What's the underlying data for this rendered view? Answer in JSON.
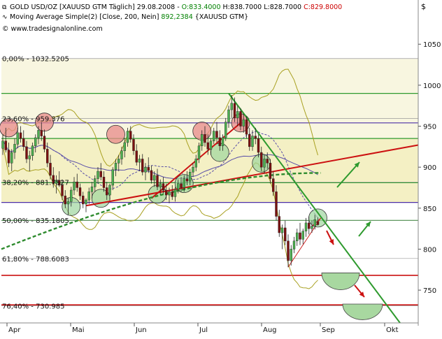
{
  "header": {
    "title_prefix": "GOLD USD/OZ [XAUUSD GTM  Täglich] 29.08.2008 - ",
    "ohlc": [
      {
        "text": "O:833.4000",
        "color": "#008000"
      },
      {
        "text": " H:838.7000",
        "color": "#000000"
      },
      {
        "text": " L:828.7000",
        "color": "#000000"
      },
      {
        "text": " C:829.8000",
        "color": "#cc0000"
      }
    ],
    "ma_label": "Moving Average Simple(2) [Close, 200, Nein] ",
    "ma_value": "892,2384",
    "ma_suffix": " {XAUUSD GTM}",
    "copyright": "© www.tradesignalonline.com",
    "currency_symbol": "$"
  },
  "chart_data": {
    "type": "candlestick",
    "instrument": "GOLD USD/OZ",
    "x_ticks": [
      "Apr",
      "Mai",
      "Jun",
      "Jul",
      "Aug",
      "Sep",
      "Okt"
    ],
    "y_ticks": [
      750,
      800,
      850,
      900,
      950,
      1000,
      1050
    ],
    "ylim": [
      710,
      1063
    ],
    "grid": false,
    "fib_levels": [
      {
        "label": "0,00% - 1032.5205",
        "value": 1032.52
      },
      {
        "label": "23,60% - 959.376",
        "value": 959.38
      },
      {
        "label": "38,20% - 881.7527",
        "value": 881.75
      },
      {
        "label": "50,00% - 835.1805",
        "value": 835.18
      },
      {
        "label": "61,80% - 788.6083",
        "value": 788.61
      },
      {
        "label": "76,40% - 730.985",
        "value": 730.99
      }
    ],
    "level_lines": [
      {
        "value": 990,
        "color": "#2e9a2e"
      },
      {
        "value": 954,
        "color": "#4b2fa6"
      },
      {
        "value": 935,
        "color": "#2e9a2e"
      },
      {
        "value": 881,
        "color": "#2e9a2e"
      },
      {
        "value": 857,
        "color": "#4b2fa6"
      },
      {
        "value": 835,
        "color": "#2e9a2e"
      },
      {
        "value": 768,
        "color": "#cc1111"
      },
      {
        "value": 732,
        "color": "#cc1111"
      }
    ],
    "zones": [
      {
        "from": 935,
        "to": 1032.5,
        "color": "#f8f6e0"
      },
      {
        "from": 857,
        "to": 935,
        "color": "#f4f0c4"
      }
    ],
    "candles": [
      {
        "o": 923,
        "h": 940,
        "l": 915,
        "c": 932
      },
      {
        "o": 932,
        "h": 948,
        "l": 918,
        "c": 921
      },
      {
        "o": 921,
        "h": 930,
        "l": 900,
        "c": 905
      },
      {
        "o": 905,
        "h": 922,
        "l": 895,
        "c": 918
      },
      {
        "o": 918,
        "h": 935,
        "l": 910,
        "c": 928
      },
      {
        "o": 928,
        "h": 948,
        "l": 923,
        "c": 942
      },
      {
        "o": 942,
        "h": 950,
        "l": 930,
        "c": 935
      },
      {
        "o": 935,
        "h": 945,
        "l": 920,
        "c": 925
      },
      {
        "o": 925,
        "h": 932,
        "l": 905,
        "c": 910
      },
      {
        "o": 910,
        "h": 920,
        "l": 895,
        "c": 914
      },
      {
        "o": 914,
        "h": 930,
        "l": 908,
        "c": 926
      },
      {
        "o": 926,
        "h": 940,
        "l": 918,
        "c": 936
      },
      {
        "o": 936,
        "h": 950,
        "l": 928,
        "c": 945
      },
      {
        "o": 945,
        "h": 955,
        "l": 932,
        "c": 938
      },
      {
        "o": 938,
        "h": 946,
        "l": 918,
        "c": 922
      },
      {
        "o": 922,
        "h": 930,
        "l": 900,
        "c": 905
      },
      {
        "o": 905,
        "h": 915,
        "l": 885,
        "c": 890
      },
      {
        "o": 890,
        "h": 900,
        "l": 875,
        "c": 880
      },
      {
        "o": 880,
        "h": 890,
        "l": 868,
        "c": 884
      },
      {
        "o": 884,
        "h": 895,
        "l": 876,
        "c": 878
      },
      {
        "o": 878,
        "h": 885,
        "l": 860,
        "c": 865
      },
      {
        "o": 865,
        "h": 872,
        "l": 850,
        "c": 855
      },
      {
        "o": 855,
        "h": 862,
        "l": 842,
        "c": 858
      },
      {
        "o": 858,
        "h": 876,
        "l": 852,
        "c": 872
      },
      {
        "o": 872,
        "h": 888,
        "l": 866,
        "c": 882
      },
      {
        "o": 882,
        "h": 892,
        "l": 870,
        "c": 875
      },
      {
        "o": 875,
        "h": 880,
        "l": 860,
        "c": 865
      },
      {
        "o": 865,
        "h": 870,
        "l": 850,
        "c": 855
      },
      {
        "o": 855,
        "h": 862,
        "l": 845,
        "c": 860
      },
      {
        "o": 860,
        "h": 875,
        "l": 855,
        "c": 870
      },
      {
        "o": 870,
        "h": 882,
        "l": 862,
        "c": 876
      },
      {
        "o": 876,
        "h": 890,
        "l": 870,
        "c": 886
      },
      {
        "o": 886,
        "h": 900,
        "l": 880,
        "c": 895
      },
      {
        "o": 895,
        "h": 905,
        "l": 884,
        "c": 888
      },
      {
        "o": 888,
        "h": 895,
        "l": 870,
        "c": 875
      },
      {
        "o": 875,
        "h": 882,
        "l": 860,
        "c": 866
      },
      {
        "o": 866,
        "h": 880,
        "l": 860,
        "c": 878
      },
      {
        "o": 878,
        "h": 900,
        "l": 872,
        "c": 897
      },
      {
        "o": 897,
        "h": 910,
        "l": 889,
        "c": 905
      },
      {
        "o": 905,
        "h": 915,
        "l": 895,
        "c": 910
      },
      {
        "o": 910,
        "h": 925,
        "l": 903,
        "c": 920
      },
      {
        "o": 920,
        "h": 935,
        "l": 912,
        "c": 930
      },
      {
        "o": 930,
        "h": 948,
        "l": 925,
        "c": 944
      },
      {
        "o": 944,
        "h": 950,
        "l": 930,
        "c": 934
      },
      {
        "o": 934,
        "h": 940,
        "l": 915,
        "c": 920
      },
      {
        "o": 920,
        "h": 928,
        "l": 902,
        "c": 906
      },
      {
        "o": 906,
        "h": 915,
        "l": 895,
        "c": 910
      },
      {
        "o": 910,
        "h": 916,
        "l": 890,
        "c": 894
      },
      {
        "o": 894,
        "h": 905,
        "l": 884,
        "c": 900
      },
      {
        "o": 900,
        "h": 912,
        "l": 893,
        "c": 896
      },
      {
        "o": 896,
        "h": 902,
        "l": 880,
        "c": 884
      },
      {
        "o": 884,
        "h": 895,
        "l": 876,
        "c": 890
      },
      {
        "o": 890,
        "h": 898,
        "l": 872,
        "c": 876
      },
      {
        "o": 876,
        "h": 885,
        "l": 866,
        "c": 880
      },
      {
        "o": 880,
        "h": 888,
        "l": 868,
        "c": 872
      },
      {
        "o": 872,
        "h": 880,
        "l": 860,
        "c": 866
      },
      {
        "o": 866,
        "h": 875,
        "l": 856,
        "c": 870
      },
      {
        "o": 870,
        "h": 878,
        "l": 860,
        "c": 864
      },
      {
        "o": 864,
        "h": 876,
        "l": 858,
        "c": 873
      },
      {
        "o": 873,
        "h": 885,
        "l": 868,
        "c": 880
      },
      {
        "o": 880,
        "h": 888,
        "l": 870,
        "c": 875
      },
      {
        "o": 875,
        "h": 890,
        "l": 870,
        "c": 886
      },
      {
        "o": 886,
        "h": 895,
        "l": 878,
        "c": 883
      },
      {
        "o": 883,
        "h": 898,
        "l": 878,
        "c": 894
      },
      {
        "o": 894,
        "h": 905,
        "l": 888,
        "c": 900
      },
      {
        "o": 900,
        "h": 915,
        "l": 895,
        "c": 910
      },
      {
        "o": 910,
        "h": 930,
        "l": 905,
        "c": 926
      },
      {
        "o": 926,
        "h": 945,
        "l": 920,
        "c": 940
      },
      {
        "o": 940,
        "h": 950,
        "l": 925,
        "c": 930
      },
      {
        "o": 930,
        "h": 940,
        "l": 915,
        "c": 922
      },
      {
        "o": 922,
        "h": 935,
        "l": 915,
        "c": 932
      },
      {
        "o": 932,
        "h": 948,
        "l": 928,
        "c": 944
      },
      {
        "o": 944,
        "h": 955,
        "l": 930,
        "c": 936
      },
      {
        "o": 936,
        "h": 945,
        "l": 920,
        "c": 926
      },
      {
        "o": 926,
        "h": 940,
        "l": 920,
        "c": 936
      },
      {
        "o": 936,
        "h": 960,
        "l": 932,
        "c": 955
      },
      {
        "o": 955,
        "h": 975,
        "l": 948,
        "c": 970
      },
      {
        "o": 970,
        "h": 988,
        "l": 960,
        "c": 978
      },
      {
        "o": 978,
        "h": 985,
        "l": 955,
        "c": 960
      },
      {
        "o": 960,
        "h": 975,
        "l": 950,
        "c": 968
      },
      {
        "o": 968,
        "h": 972,
        "l": 945,
        "c": 950
      },
      {
        "o": 950,
        "h": 965,
        "l": 942,
        "c": 958
      },
      {
        "o": 958,
        "h": 962,
        "l": 935,
        "c": 940
      },
      {
        "o": 940,
        "h": 948,
        "l": 920,
        "c": 925
      },
      {
        "o": 925,
        "h": 945,
        "l": 920,
        "c": 938
      },
      {
        "o": 938,
        "h": 948,
        "l": 928,
        "c": 935
      },
      {
        "o": 935,
        "h": 940,
        "l": 912,
        "c": 918
      },
      {
        "o": 918,
        "h": 925,
        "l": 895,
        "c": 900
      },
      {
        "o": 900,
        "h": 915,
        "l": 892,
        "c": 910
      },
      {
        "o": 910,
        "h": 918,
        "l": 898,
        "c": 905
      },
      {
        "o": 905,
        "h": 910,
        "l": 880,
        "c": 886
      },
      {
        "o": 886,
        "h": 895,
        "l": 865,
        "c": 870
      },
      {
        "o": 870,
        "h": 878,
        "l": 835,
        "c": 840
      },
      {
        "o": 840,
        "h": 848,
        "l": 815,
        "c": 820
      },
      {
        "o": 820,
        "h": 830,
        "l": 800,
        "c": 826
      },
      {
        "o": 826,
        "h": 835,
        "l": 805,
        "c": 810
      },
      {
        "o": 810,
        "h": 818,
        "l": 778,
        "c": 786
      },
      {
        "o": 786,
        "h": 805,
        "l": 780,
        "c": 800
      },
      {
        "o": 800,
        "h": 815,
        "l": 795,
        "c": 810
      },
      {
        "o": 810,
        "h": 825,
        "l": 804,
        "c": 820
      },
      {
        "o": 820,
        "h": 832,
        "l": 805,
        "c": 812
      },
      {
        "o": 812,
        "h": 825,
        "l": 806,
        "c": 822
      },
      {
        "o": 822,
        "h": 838,
        "l": 815,
        "c": 832
      },
      {
        "o": 832,
        "h": 840,
        "l": 818,
        "c": 825
      },
      {
        "o": 825,
        "h": 835,
        "l": 820,
        "c": 828
      },
      {
        "o": 828,
        "h": 842,
        "l": 824,
        "c": 836
      },
      {
        "o": 833.4,
        "h": 838.7,
        "l": 828.7,
        "c": 829.8
      }
    ]
  },
  "colors": {
    "bull": "#4caf50",
    "bear": "#7a1010",
    "ma_line": "#2e8b2e",
    "trend_red": "#cc1111",
    "trend_green": "#2e9a2e",
    "bollinger": "#a8a020",
    "ma_short": "#5a4fa8",
    "grid_frame": "#888888"
  }
}
